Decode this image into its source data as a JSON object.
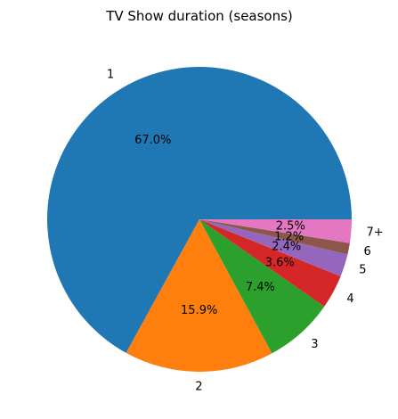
{
  "chart_data": {
    "type": "pie",
    "title": "TV Show duration (seasons)",
    "start_angle_deg": 0,
    "direction": "counterclockwise",
    "slices": [
      {
        "label": "1",
        "value": 67.0,
        "pct_label": "67.0%",
        "color": "#1f77b4"
      },
      {
        "label": "2",
        "value": 15.9,
        "pct_label": "15.9%",
        "color": "#ff7f0e"
      },
      {
        "label": "3",
        "value": 7.4,
        "pct_label": "7.4%",
        "color": "#2ca02c"
      },
      {
        "label": "4",
        "value": 3.6,
        "pct_label": "3.6%",
        "color": "#d62728"
      },
      {
        "label": "5",
        "value": 2.4,
        "pct_label": "2.4%",
        "color": "#9467bd"
      },
      {
        "label": "6",
        "value": 1.2,
        "pct_label": "1.2%",
        "color": "#8c564b"
      },
      {
        "label": "7+",
        "value": 2.5,
        "pct_label": "2.5%",
        "color": "#e377c2"
      }
    ]
  }
}
